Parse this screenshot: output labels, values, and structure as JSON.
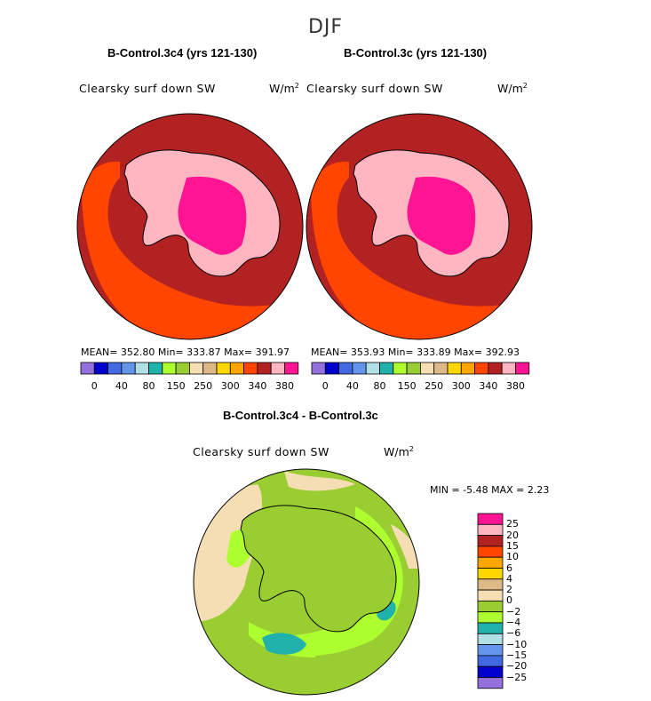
{
  "figure": {
    "season": "DJF"
  },
  "panels": [
    {
      "title": "B-Control.3c4 (yrs 121-130)",
      "variable": "Clearsky surf down SW",
      "units_base": "W/m",
      "units_exp": "2",
      "stats_text": "MEAN= 352.80   Min= 333.87   Max= 391.97"
    },
    {
      "title": "B-Control.3c (yrs 121-130)",
      "variable": "Clearsky surf down SW",
      "units_base": "W/m",
      "units_exp": "2",
      "stats_text": "MEAN= 353.93   Min= 333.89   Max= 392.93"
    }
  ],
  "diff_panel": {
    "title": "B-Control.3c4 - B-Control.3c",
    "variable": "Clearsky surf down SW",
    "units_base": "W/m",
    "units_exp": "2",
    "min_max_text": "MIN =   -5.48 MAX =    2.23"
  },
  "chart_data": [
    {
      "type": "heatmap",
      "projection": "south-polar-stereographic",
      "title": "B-Control.3c4 (yrs 121-130)",
      "variable": "Clearsky surf down SW",
      "units": "W/m2",
      "mean": 352.8,
      "min": 333.87,
      "max": 391.97,
      "colorbar_levels": [
        0,
        20,
        40,
        60,
        80,
        100,
        150,
        200,
        250,
        275,
        300,
        320,
        340,
        360,
        380
      ],
      "colorbar_labels": [
        "0",
        "40",
        "80",
        "150",
        "250",
        "300",
        "340",
        "380"
      ],
      "colorbar_colors": [
        "#9370db",
        "#0000cd",
        "#4169e1",
        "#6495ed",
        "#b0e0e6",
        "#20b2aa",
        "#adff2f",
        "#9acd32",
        "#f5deb3",
        "#deb887",
        "#ffd700",
        "#ffa500",
        "#ff4500",
        "#b22222",
        "#ffb6c1",
        "#ff1493"
      ],
      "legend_position": "bottom"
    },
    {
      "type": "heatmap",
      "projection": "south-polar-stereographic",
      "title": "B-Control.3c (yrs 121-130)",
      "variable": "Clearsky surf down SW",
      "units": "W/m2",
      "mean": 353.93,
      "min": 333.89,
      "max": 392.93,
      "colorbar_levels": [
        0,
        20,
        40,
        60,
        80,
        100,
        150,
        200,
        250,
        275,
        300,
        320,
        340,
        360,
        380
      ],
      "colorbar_labels": [
        "0",
        "40",
        "80",
        "150",
        "250",
        "300",
        "340",
        "380"
      ],
      "colorbar_colors": [
        "#9370db",
        "#0000cd",
        "#4169e1",
        "#6495ed",
        "#b0e0e6",
        "#20b2aa",
        "#adff2f",
        "#9acd32",
        "#f5deb3",
        "#deb887",
        "#ffd700",
        "#ffa500",
        "#ff4500",
        "#b22222",
        "#ffb6c1",
        "#ff1493"
      ],
      "legend_position": "bottom"
    },
    {
      "type": "heatmap",
      "projection": "south-polar-stereographic",
      "title": "B-Control.3c4 - B-Control.3c",
      "variable": "Clearsky surf down SW",
      "units": "W/m2",
      "min": -5.48,
      "max": 2.23,
      "colorbar_levels": [
        25,
        20,
        15,
        10,
        6,
        4,
        2,
        0,
        -2,
        -4,
        -6,
        -10,
        -15,
        -20,
        -25
      ],
      "colorbar_labels": [
        "25",
        "20",
        "15",
        "10",
        "6",
        "4",
        "2",
        "0",
        "−2",
        "−4",
        "−6",
        "−10",
        "−15",
        "−20",
        "−25"
      ],
      "colorbar_colors": [
        "#ff1493",
        "#ffb6c1",
        "#b22222",
        "#ff4500",
        "#ffa500",
        "#ffd700",
        "#deb887",
        "#f5deb3",
        "#9acd32",
        "#adff2f",
        "#20b2aa",
        "#b0e0e6",
        "#6495ed",
        "#4169e1",
        "#0000cd",
        "#9370db"
      ],
      "legend_position": "right"
    }
  ]
}
